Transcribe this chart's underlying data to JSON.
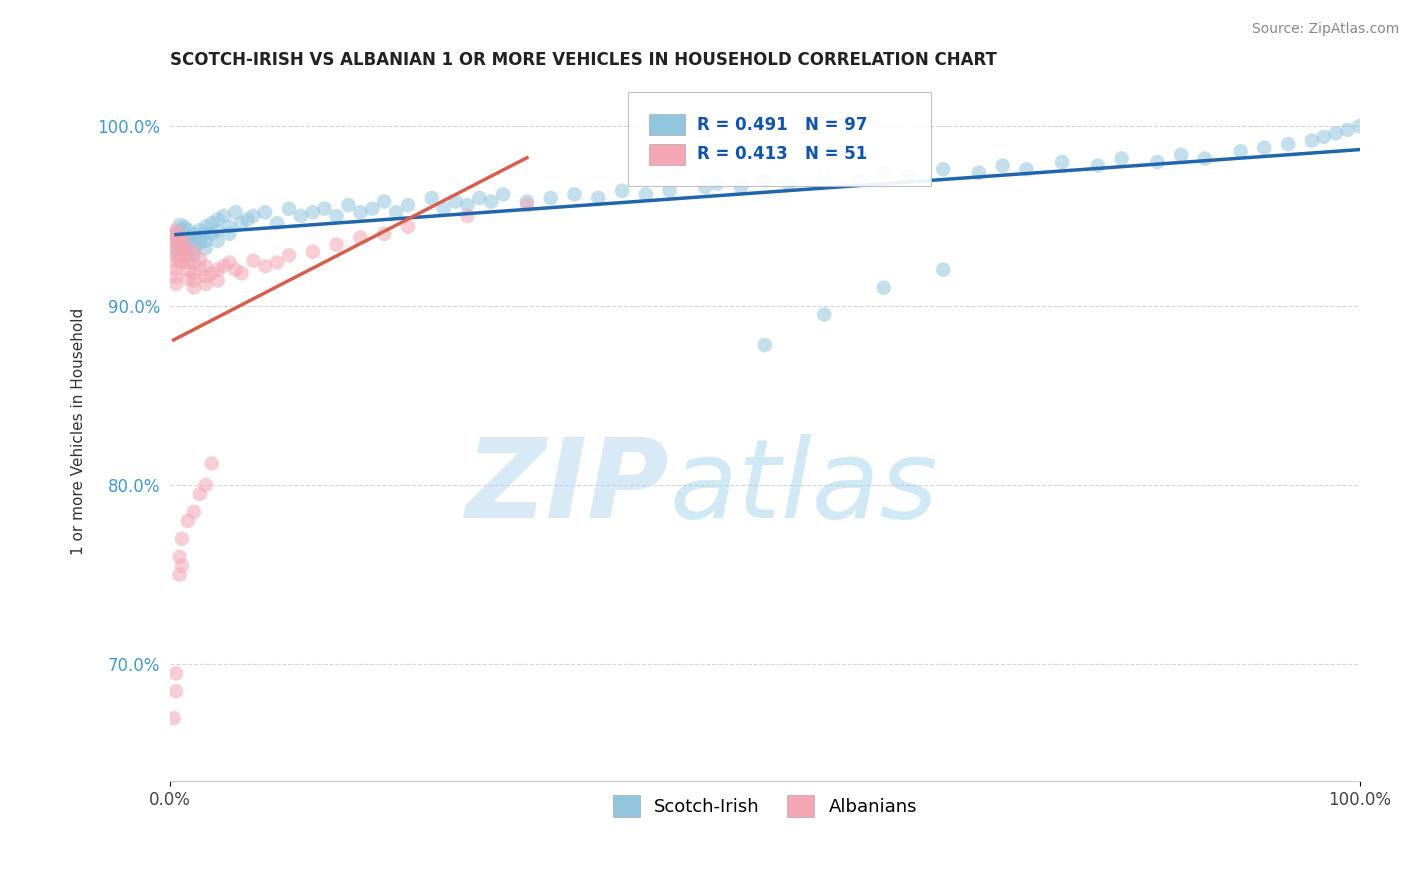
{
  "title": "SCOTCH-IRISH VS ALBANIAN 1 OR MORE VEHICLES IN HOUSEHOLD CORRELATION CHART",
  "source_text": "Source: ZipAtlas.com",
  "ylabel": "1 or more Vehicles in Household",
  "watermark_zip": "ZIP",
  "watermark_atlas": "atlas",
  "legend_blue_label": "Scotch-Irish",
  "legend_pink_label": "Albanians",
  "blue_R": 0.491,
  "blue_N": 97,
  "pink_R": 0.413,
  "pink_N": 51,
  "blue_color": "#92c5de",
  "pink_color": "#f4a6b5",
  "blue_line_color": "#2166ac",
  "pink_line_color": "#d6604d",
  "xmin": 0.0,
  "xmax": 1.0,
  "ymin": 0.635,
  "ymax": 1.025,
  "ytick_labels": [
    "70.0%",
    "80.0%",
    "90.0%",
    "100.0%"
  ],
  "ytick_values": [
    0.7,
    0.8,
    0.9,
    1.0
  ],
  "xtick_labels": [
    "0.0%",
    "100.0%"
  ],
  "xtick_values": [
    0.0,
    1.0
  ],
  "blue_scatter_x": [
    0.005,
    0.005,
    0.005,
    0.008,
    0.008,
    0.01,
    0.01,
    0.01,
    0.01,
    0.01,
    0.012,
    0.012,
    0.015,
    0.015,
    0.015,
    0.015,
    0.02,
    0.02,
    0.02,
    0.02,
    0.025,
    0.025,
    0.025,
    0.03,
    0.03,
    0.03,
    0.03,
    0.035,
    0.035,
    0.04,
    0.04,
    0.04,
    0.045,
    0.05,
    0.05,
    0.055,
    0.06,
    0.065,
    0.07,
    0.08,
    0.09,
    0.1,
    0.11,
    0.12,
    0.13,
    0.14,
    0.15,
    0.16,
    0.17,
    0.18,
    0.19,
    0.2,
    0.22,
    0.23,
    0.24,
    0.25,
    0.26,
    0.27,
    0.28,
    0.3,
    0.32,
    0.34,
    0.36,
    0.38,
    0.4,
    0.42,
    0.45,
    0.46,
    0.48,
    0.5,
    0.52,
    0.55,
    0.58,
    0.6,
    0.62,
    0.65,
    0.68,
    0.7,
    0.72,
    0.75,
    0.78,
    0.8,
    0.83,
    0.85,
    0.87,
    0.9,
    0.92,
    0.94,
    0.96,
    0.97,
    0.98,
    0.99,
    1.0,
    0.5,
    0.55,
    0.6,
    0.65
  ],
  "blue_scatter_y": [
    0.94,
    0.935,
    0.93,
    0.945,
    0.938,
    0.942,
    0.938,
    0.935,
    0.93,
    0.932,
    0.944,
    0.936,
    0.938,
    0.942,
    0.935,
    0.928,
    0.94,
    0.936,
    0.932,
    0.928,
    0.942,
    0.938,
    0.935,
    0.944,
    0.94,
    0.936,
    0.932,
    0.946,
    0.94,
    0.948,
    0.942,
    0.936,
    0.95,
    0.944,
    0.94,
    0.952,
    0.946,
    0.948,
    0.95,
    0.952,
    0.946,
    0.954,
    0.95,
    0.952,
    0.954,
    0.95,
    0.956,
    0.952,
    0.954,
    0.958,
    0.952,
    0.956,
    0.96,
    0.954,
    0.958,
    0.956,
    0.96,
    0.958,
    0.962,
    0.958,
    0.96,
    0.962,
    0.96,
    0.964,
    0.962,
    0.964,
    0.966,
    0.968,
    0.966,
    0.97,
    0.968,
    0.972,
    0.97,
    0.974,
    0.972,
    0.976,
    0.974,
    0.978,
    0.976,
    0.98,
    0.978,
    0.982,
    0.98,
    0.984,
    0.982,
    0.986,
    0.988,
    0.99,
    0.992,
    0.994,
    0.996,
    0.998,
    1.0,
    0.878,
    0.895,
    0.91,
    0.92
  ],
  "pink_scatter_x": [
    0.003,
    0.003,
    0.005,
    0.005,
    0.005,
    0.005,
    0.005,
    0.005,
    0.005,
    0.005,
    0.008,
    0.008,
    0.008,
    0.01,
    0.01,
    0.01,
    0.01,
    0.012,
    0.012,
    0.015,
    0.015,
    0.015,
    0.015,
    0.02,
    0.02,
    0.02,
    0.02,
    0.02,
    0.025,
    0.025,
    0.03,
    0.03,
    0.03,
    0.035,
    0.04,
    0.04,
    0.045,
    0.05,
    0.055,
    0.06,
    0.07,
    0.08,
    0.09,
    0.1,
    0.12,
    0.14,
    0.16,
    0.18,
    0.2,
    0.25,
    0.3
  ],
  "pink_scatter_y": [
    0.94,
    0.935,
    0.942,
    0.938,
    0.932,
    0.928,
    0.924,
    0.92,
    0.916,
    0.912,
    0.936,
    0.93,
    0.925,
    0.938,
    0.932,
    0.928,
    0.924,
    0.934,
    0.928,
    0.93,
    0.924,
    0.92,
    0.915,
    0.93,
    0.924,
    0.918,
    0.914,
    0.91,
    0.926,
    0.92,
    0.922,
    0.916,
    0.912,
    0.918,
    0.92,
    0.914,
    0.922,
    0.924,
    0.92,
    0.918,
    0.925,
    0.922,
    0.924,
    0.928,
    0.93,
    0.934,
    0.938,
    0.94,
    0.944,
    0.95,
    0.956
  ],
  "pink_low_x": [
    0.003,
    0.005,
    0.005,
    0.008,
    0.008,
    0.01,
    0.01,
    0.015,
    0.02,
    0.025,
    0.03,
    0.035
  ],
  "pink_low_y": [
    0.67,
    0.695,
    0.685,
    0.75,
    0.76,
    0.755,
    0.77,
    0.78,
    0.785,
    0.795,
    0.8,
    0.812
  ]
}
